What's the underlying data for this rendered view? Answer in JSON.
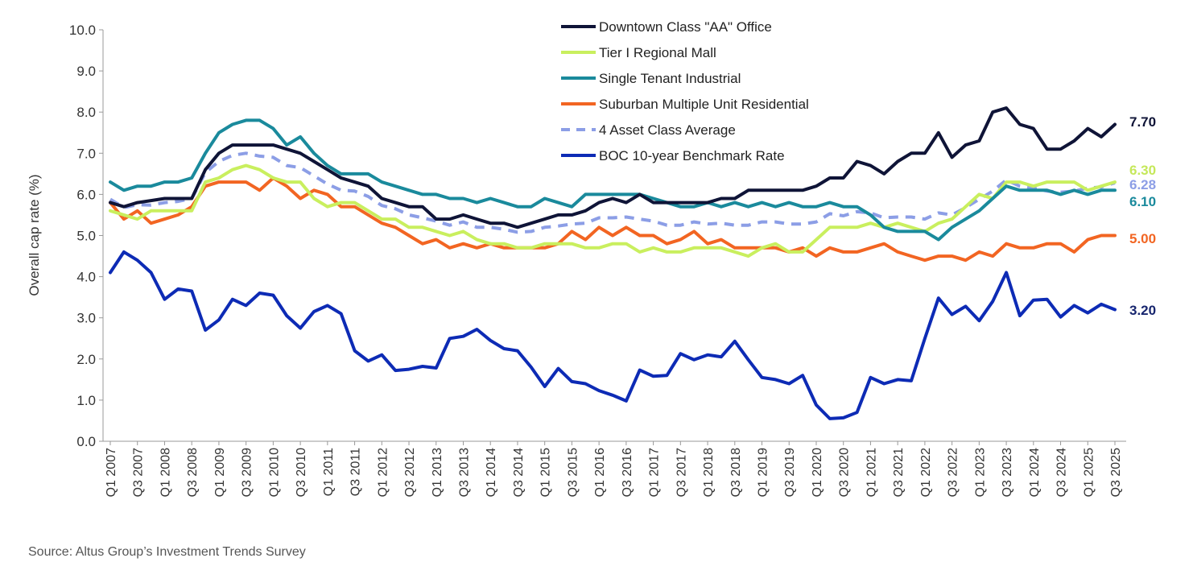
{
  "chart_data": {
    "type": "line",
    "title": "",
    "xlabel": "",
    "ylabel": "Overall cap rate (%)",
    "ylim": [
      0,
      10
    ],
    "yticks": [
      "0.0",
      "1.0",
      "2.0",
      "3.0",
      "4.0",
      "5.0",
      "6.0",
      "7.0",
      "8.0",
      "9.0",
      "10.0"
    ],
    "grid": false,
    "legend_position": "top-center",
    "x": [
      "Q1 2007",
      "Q2 2007",
      "Q3 2007",
      "Q4 2007",
      "Q1 2008",
      "Q2 2008",
      "Q3 2008",
      "Q4 2008",
      "Q1 2009",
      "Q2 2009",
      "Q3 2009",
      "Q4 2009",
      "Q1 2010",
      "Q2 2010",
      "Q3 2010",
      "Q4 2010",
      "Q1 2011",
      "Q2 2011",
      "Q3 2011",
      "Q4 2011",
      "Q1 2012",
      "Q2 2012",
      "Q3 2012",
      "Q4 2012",
      "Q1 2013",
      "Q2 2013",
      "Q3 2013",
      "Q4 2013",
      "Q1 2014",
      "Q2 2014",
      "Q3 2014",
      "Q4 2014",
      "Q1 2015",
      "Q2 2015",
      "Q3 2015",
      "Q4 2015",
      "Q1 2016",
      "Q2 2016",
      "Q3 2016",
      "Q4 2016",
      "Q1 2017",
      "Q2 2017",
      "Q3 2017",
      "Q4 2017",
      "Q1 2018",
      "Q2 2018",
      "Q3 2018",
      "Q4 2018",
      "Q1 2019",
      "Q2 2019",
      "Q3 2019",
      "Q4 2019",
      "Q1 2020",
      "Q2 2020",
      "Q3 2020",
      "Q4 2020",
      "Q1 2021",
      "Q2 2021",
      "Q3 2021",
      "Q4 2021",
      "Q1 2022",
      "Q2 2022",
      "Q3 2022",
      "Q4 2022",
      "Q1 2023",
      "Q2 2023",
      "Q3 2023",
      "Q4 2023",
      "Q1 2024",
      "Q2 2024",
      "Q3 2024",
      "Q4 2024",
      "Q1 2025",
      "Q2 2025",
      "Q3 2025"
    ],
    "xtick_labels": [
      "Q1 2007",
      "Q3 2007",
      "Q1 2008",
      "Q3 2008",
      "Q1 2009",
      "Q3 2009",
      "Q1 2010",
      "Q3 2010",
      "Q1 2011",
      "Q3 2011",
      "Q1 2012",
      "Q3 2012",
      "Q1 2013",
      "Q3 2013",
      "Q1 2014",
      "Q3 2014",
      "Q1 2015",
      "Q3 2015",
      "Q1 2016",
      "Q3 2016",
      "Q1 2017",
      "Q3 2017",
      "Q1 2018",
      "Q3 2018",
      "Q1 2019",
      "Q3 2019",
      "Q1 2020",
      "Q3 2020",
      "Q1 2021",
      "Q3 2021",
      "Q1 2022",
      "Q3 2022",
      "Q1 2023",
      "Q3 2023",
      "Q1 2024",
      "Q3 2024",
      "Q1 2025",
      "Q3 2025"
    ],
    "series": [
      {
        "name": "Downtown Class \"AA\" Office",
        "color": "#0f1437",
        "dashed": false,
        "end_label": "7.70",
        "end_label_color": "#0f1437",
        "values": [
          5.8,
          5.7,
          5.8,
          5.85,
          5.9,
          5.9,
          5.9,
          6.6,
          7.0,
          7.2,
          7.2,
          7.2,
          7.2,
          7.1,
          7.0,
          6.8,
          6.6,
          6.4,
          6.3,
          6.2,
          5.9,
          5.8,
          5.7,
          5.7,
          5.4,
          5.4,
          5.5,
          5.4,
          5.3,
          5.3,
          5.2,
          5.3,
          5.4,
          5.5,
          5.5,
          5.6,
          5.8,
          5.9,
          5.8,
          6.0,
          5.8,
          5.8,
          5.8,
          5.8,
          5.8,
          5.9,
          5.9,
          6.1,
          6.1,
          6.1,
          6.1,
          6.1,
          6.2,
          6.4,
          6.4,
          6.8,
          6.7,
          6.5,
          6.8,
          7.0,
          7.0,
          7.5,
          6.9,
          7.2,
          7.3,
          8.0,
          8.1,
          7.7,
          7.6,
          7.1,
          7.1,
          7.3,
          7.6,
          7.4,
          7.7
        ]
      },
      {
        "name": "Tier I Regional Mall",
        "color": "#c9ef5e",
        "dashed": false,
        "end_label": "6.30",
        "end_label_color": "#c5e85a",
        "values": [
          5.6,
          5.5,
          5.4,
          5.6,
          5.6,
          5.6,
          5.6,
          6.3,
          6.4,
          6.6,
          6.7,
          6.6,
          6.4,
          6.3,
          6.3,
          5.9,
          5.7,
          5.8,
          5.8,
          5.6,
          5.4,
          5.4,
          5.2,
          5.2,
          5.1,
          5.0,
          5.1,
          4.9,
          4.8,
          4.8,
          4.7,
          4.7,
          4.8,
          4.8,
          4.8,
          4.7,
          4.7,
          4.8,
          4.8,
          4.6,
          4.7,
          4.6,
          4.6,
          4.7,
          4.7,
          4.7,
          4.6,
          4.5,
          4.7,
          4.8,
          4.6,
          4.6,
          4.9,
          5.2,
          5.2,
          5.2,
          5.3,
          5.2,
          5.3,
          5.2,
          5.1,
          5.3,
          5.4,
          5.7,
          6.0,
          5.9,
          6.3,
          6.3,
          6.2,
          6.3,
          6.3,
          6.3,
          6.1,
          6.2,
          6.3
        ]
      },
      {
        "name": "Single Tenant Industrial",
        "color": "#1a8a9c",
        "dashed": false,
        "end_label": "6.10",
        "end_label_color": "#1a8a9c",
        "values": [
          6.3,
          6.1,
          6.2,
          6.2,
          6.3,
          6.3,
          6.4,
          7.0,
          7.5,
          7.7,
          7.8,
          7.8,
          7.6,
          7.2,
          7.4,
          7.0,
          6.7,
          6.5,
          6.5,
          6.5,
          6.3,
          6.2,
          6.1,
          6.0,
          6.0,
          5.9,
          5.9,
          5.8,
          5.9,
          5.8,
          5.7,
          5.7,
          5.9,
          5.8,
          5.7,
          6.0,
          6.0,
          6.0,
          6.0,
          6.0,
          5.9,
          5.8,
          5.7,
          5.7,
          5.8,
          5.7,
          5.8,
          5.7,
          5.8,
          5.7,
          5.8,
          5.7,
          5.7,
          5.8,
          5.7,
          5.7,
          5.5,
          5.2,
          5.1,
          5.1,
          5.1,
          4.9,
          5.2,
          5.4,
          5.6,
          5.9,
          6.2,
          6.1,
          6.1,
          6.1,
          6.0,
          6.1,
          6.0,
          6.1,
          6.1
        ]
      },
      {
        "name": "Suburban Multiple Unit Residential",
        "color": "#f26522",
        "dashed": false,
        "end_label": "5.00",
        "end_label_color": "#f26522",
        "values": [
          5.8,
          5.4,
          5.6,
          5.3,
          5.4,
          5.5,
          5.7,
          6.2,
          6.3,
          6.3,
          6.3,
          6.1,
          6.4,
          6.2,
          5.9,
          6.1,
          6.0,
          5.7,
          5.7,
          5.5,
          5.3,
          5.2,
          5.0,
          4.8,
          4.9,
          4.7,
          4.8,
          4.7,
          4.8,
          4.7,
          4.7,
          4.7,
          4.7,
          4.8,
          5.1,
          4.9,
          5.2,
          5.0,
          5.2,
          5.0,
          5.0,
          4.8,
          4.9,
          5.1,
          4.8,
          4.9,
          4.7,
          4.7,
          4.7,
          4.7,
          4.6,
          4.7,
          4.5,
          4.7,
          4.6,
          4.6,
          4.7,
          4.8,
          4.6,
          4.5,
          4.4,
          4.5,
          4.5,
          4.4,
          4.6,
          4.5,
          4.8,
          4.7,
          4.7,
          4.8,
          4.8,
          4.6,
          4.9,
          5.0,
          5.0
        ]
      },
      {
        "name": "4 Asset Class Average",
        "color": "#8c9ee6",
        "dashed": true,
        "end_label": "6.28",
        "end_label_color": "#8c9ee6",
        "values": [
          5.88,
          5.68,
          5.75,
          5.74,
          5.8,
          5.83,
          5.9,
          6.53,
          6.8,
          6.95,
          7.0,
          6.93,
          6.9,
          6.7,
          6.65,
          6.45,
          6.25,
          6.1,
          6.08,
          5.95,
          5.73,
          5.65,
          5.5,
          5.43,
          5.35,
          5.25,
          5.33,
          5.2,
          5.2,
          5.15,
          5.08,
          5.1,
          5.2,
          5.23,
          5.28,
          5.3,
          5.43,
          5.43,
          5.45,
          5.4,
          5.35,
          5.25,
          5.25,
          5.33,
          5.28,
          5.3,
          5.25,
          5.25,
          5.33,
          5.33,
          5.28,
          5.28,
          5.33,
          5.53,
          5.48,
          5.58,
          5.55,
          5.43,
          5.45,
          5.45,
          5.4,
          5.55,
          5.5,
          5.68,
          5.88,
          6.08,
          6.35,
          6.2,
          6.15,
          6.08,
          6.05,
          6.08,
          6.15,
          6.18,
          6.28
        ]
      },
      {
        "name": "BOC 10-year Benchmark Rate",
        "color": "#0d2bb5",
        "dashed": false,
        "end_label": "3.20",
        "end_label_color": "#17256e",
        "values": [
          4.1,
          4.6,
          4.4,
          4.1,
          3.45,
          3.7,
          3.65,
          2.7,
          2.95,
          3.45,
          3.3,
          3.6,
          3.55,
          3.05,
          2.75,
          3.15,
          3.3,
          3.1,
          2.2,
          1.95,
          2.1,
          1.72,
          1.75,
          1.82,
          1.78,
          2.5,
          2.55,
          2.72,
          2.45,
          2.25,
          2.2,
          1.8,
          1.33,
          1.77,
          1.45,
          1.4,
          1.23,
          1.12,
          0.98,
          1.73,
          1.58,
          1.6,
          2.13,
          1.98,
          2.1,
          2.05,
          2.43,
          1.98,
          1.55,
          1.5,
          1.4,
          1.6,
          0.88,
          0.55,
          0.57,
          0.7,
          1.55,
          1.4,
          1.5,
          1.47,
          2.5,
          3.48,
          3.08,
          3.28,
          2.93,
          3.4,
          4.1,
          3.05,
          3.43,
          3.45,
          3.02,
          3.3,
          3.12,
          3.33,
          3.2
        ]
      }
    ],
    "source": "Source:  Altus Group’s Investment Trends Survey"
  }
}
